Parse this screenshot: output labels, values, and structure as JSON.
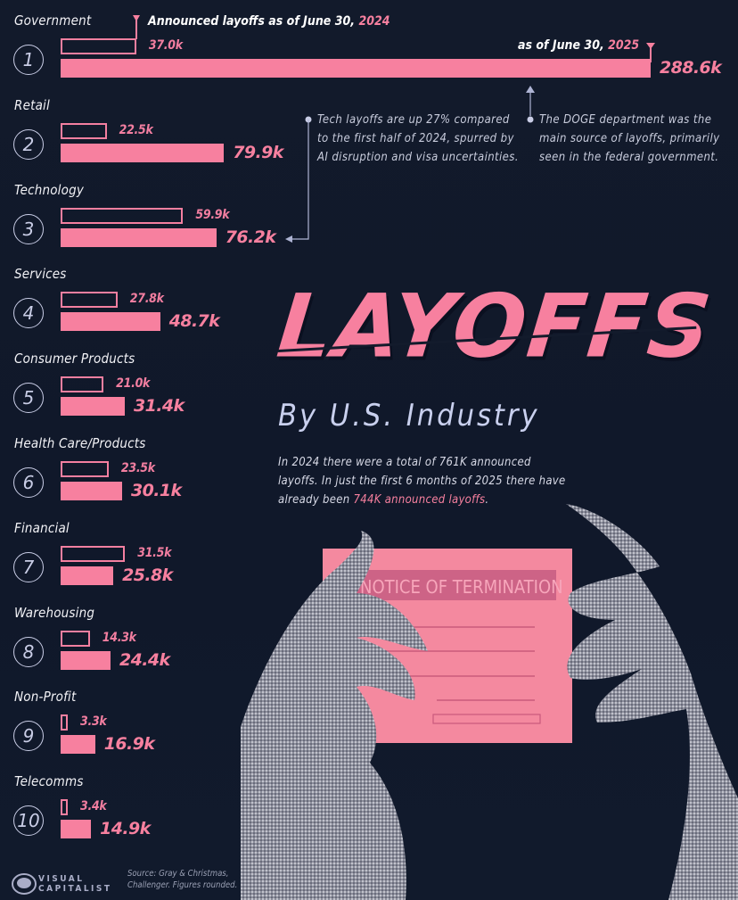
{
  "legend": {
    "label_2024_prefix": "Announced layoffs as of June 30, ",
    "label_2024_year": "2024",
    "label_2025_prefix": "as of June 30, ",
    "label_2025_year": "2025"
  },
  "annotations": {
    "tech": "Tech layoffs are up 27% compared to the first half of 2024, spurred by AI disruption and visa uncertainties.",
    "tech_lines": [
      "Tech layoffs are up 27% compared",
      "to the first half of 2024, spurred by",
      "AI disruption and visa uncertainties."
    ],
    "doge_lines": [
      "The DOGE department was the",
      "main source of layoffs, primarily",
      "seen in the federal government."
    ]
  },
  "title": {
    "main": "LAYOFFS",
    "subtitle": "By U.S. Industry"
  },
  "intro": {
    "text_before": "In 2024 there were a total of 761K announced layoffs. In just the first 6 months of 2025 there have already been ",
    "highlight": "744K announced layoffs",
    "text_after": "."
  },
  "illustration": {
    "card_text": "NOTICE OF TERMINATION"
  },
  "footer": {
    "source_line1": "Source: Gray & Christmas,",
    "source_line2": "Challenger. Figures rounded.",
    "logo_line1": "VISUAL",
    "logo_line2": "CAPITALIST"
  },
  "colors": {
    "background": "#111827",
    "accent_pink": "#f7809f",
    "text_light": "#e8e9f2",
    "annotation": "#c8ccdc"
  },
  "chart_data": {
    "type": "bar",
    "orientation": "horizontal",
    "title": "LAYOFFS By U.S. Industry",
    "units": "thousand announced layoffs",
    "series": [
      {
        "name": "Announced layoffs as of June 30, 2024",
        "style": "outline"
      },
      {
        "name": "as of June 30, 2025",
        "style": "filled"
      }
    ],
    "categories": [
      {
        "rank": 1,
        "name": "Government",
        "v2024": 37.0,
        "v2025": 288.6,
        "label2024": "37.0k",
        "label2025": "288.6k"
      },
      {
        "rank": 2,
        "name": "Retail",
        "v2024": 22.5,
        "v2025": 79.9,
        "label2024": "22.5k",
        "label2025": "79.9k"
      },
      {
        "rank": 3,
        "name": "Technology",
        "v2024": 59.9,
        "v2025": 76.2,
        "label2024": "59.9k",
        "label2025": "76.2k"
      },
      {
        "rank": 4,
        "name": "Services",
        "v2024": 27.8,
        "v2025": 48.7,
        "label2024": "27.8k",
        "label2025": "48.7k"
      },
      {
        "rank": 5,
        "name": "Consumer Products",
        "v2024": 21.0,
        "v2025": 31.4,
        "label2024": "21.0k",
        "label2025": "31.4k"
      },
      {
        "rank": 6,
        "name": "Health Care/Products",
        "v2024": 23.5,
        "v2025": 30.1,
        "label2024": "23.5k",
        "label2025": "30.1k"
      },
      {
        "rank": 7,
        "name": "Financial",
        "v2024": 31.5,
        "v2025": 25.8,
        "label2024": "31.5k",
        "label2025": "25.8k"
      },
      {
        "rank": 8,
        "name": "Warehousing",
        "v2024": 14.3,
        "v2025": 24.4,
        "label2024": "14.3k",
        "label2025": "24.4k"
      },
      {
        "rank": 9,
        "name": "Non-Profit",
        "v2024": 3.3,
        "v2025": 16.9,
        "label2024": "3.3k",
        "label2025": "16.9k"
      },
      {
        "rank": 10,
        "name": "Telecomms",
        "v2024": 3.4,
        "v2025": 14.9,
        "label2024": "3.4k",
        "label2025": "14.9k"
      }
    ],
    "xlim": [
      0,
      288.6
    ],
    "grid": false,
    "legend": "top"
  }
}
